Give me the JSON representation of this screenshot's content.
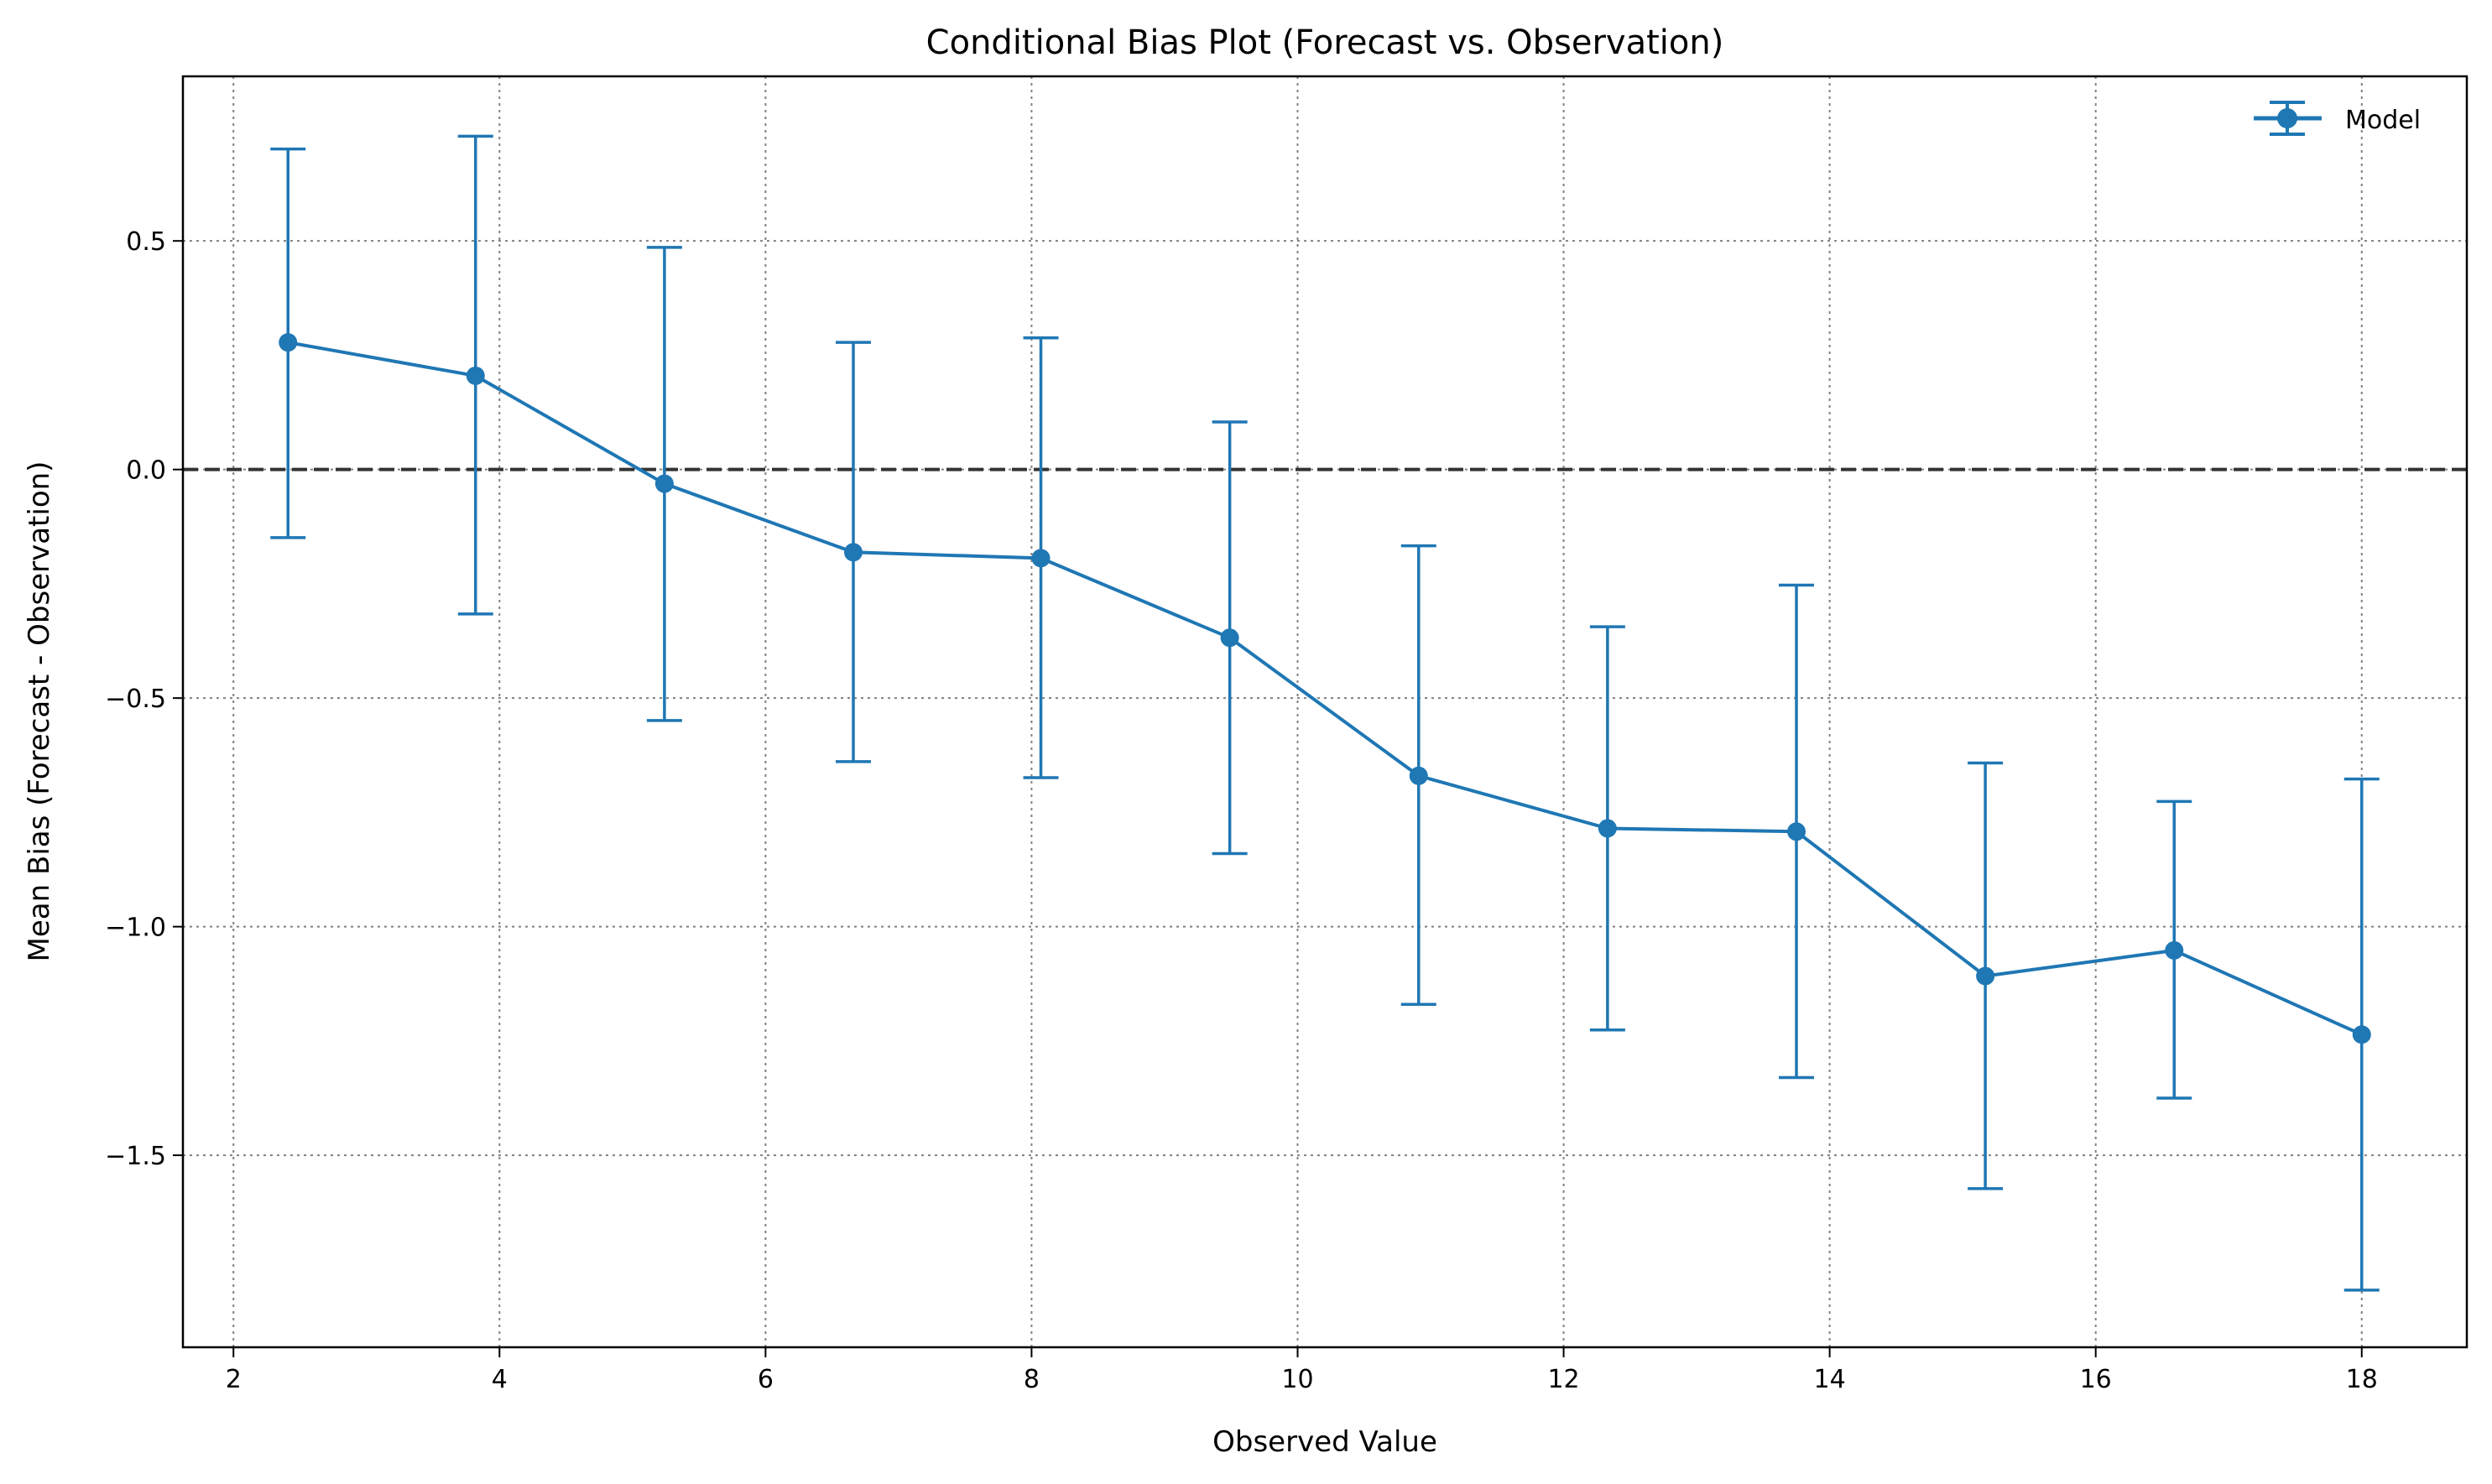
{
  "chart_data": {
    "type": "line",
    "title": "Conditional Bias Plot (Forecast vs. Observation)",
    "xlabel": "Observed Value",
    "ylabel": "Mean Bias (Forecast - Observation)",
    "xlim": [
      1.62,
      18.79
    ],
    "ylim": [
      -1.92,
      0.86
    ],
    "xticks": [
      2,
      4,
      6,
      8,
      10,
      12,
      14,
      16,
      18
    ],
    "xtick_labels": [
      "2",
      "4",
      "6",
      "8",
      "10",
      "12",
      "14",
      "16",
      "18"
    ],
    "yticks": [
      0.5,
      0.0,
      -0.5,
      -1.0,
      -1.5
    ],
    "ytick_labels": [
      "0.5",
      "0.0",
      "−0.5",
      "−1.0",
      "−1.5"
    ],
    "grid": true,
    "reference_line": {
      "y": 0.0,
      "style": "dashed",
      "color": "#333333"
    },
    "legend": {
      "placement": "top-right",
      "frame": false
    },
    "series": [
      {
        "name": "Model",
        "color": "#1f77b4",
        "marker": "circle",
        "x": [
          2.41,
          3.82,
          5.24,
          6.66,
          8.07,
          9.49,
          10.91,
          12.33,
          13.75,
          15.17,
          16.59,
          18.0
        ],
        "y": [
          0.278,
          0.205,
          -0.031,
          -0.181,
          -0.194,
          -0.368,
          -0.67,
          -0.785,
          -0.792,
          -1.108,
          -1.052,
          -1.236
        ],
        "err_upper": [
          0.701,
          0.729,
          0.486,
          0.278,
          0.288,
          0.104,
          -0.167,
          -0.344,
          -0.253,
          -0.642,
          -0.726,
          -0.677
        ],
        "err_lower": [
          -0.149,
          -0.316,
          -0.549,
          -0.639,
          -0.674,
          -0.84,
          -1.17,
          -1.226,
          -1.33,
          -1.573,
          -1.375,
          -1.795
        ]
      }
    ]
  }
}
